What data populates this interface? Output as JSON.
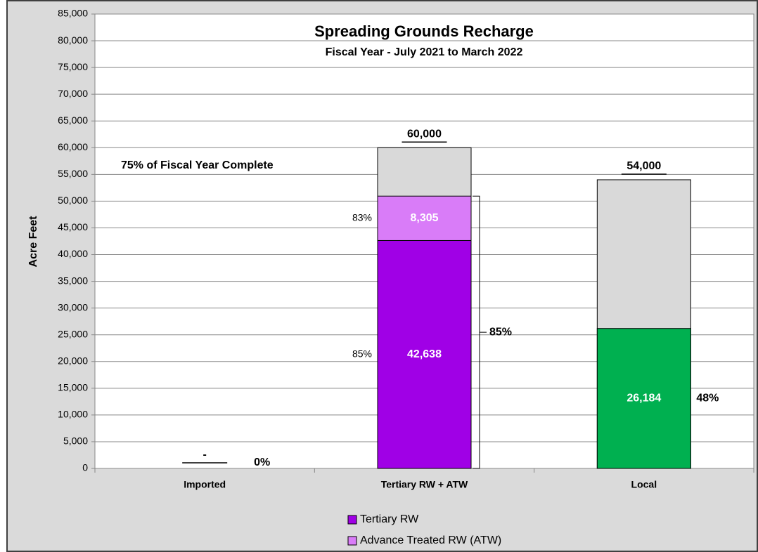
{
  "chart_data": {
    "type": "stacked_bar",
    "title": "Spreading Grounds Recharge",
    "subtitle": "Fiscal Year - July 2021 to March 2022",
    "y_label": "Acre Feet",
    "annotation": "75% of Fiscal Year Complete",
    "categories": [
      "Imported",
      "Tertiary RW + ATW",
      "Local"
    ],
    "targets": {
      "color": "#d9d9d9",
      "values": [
        0,
        60000,
        54000
      ],
      "value_labels": [
        "-",
        "60,000",
        "54,000"
      ]
    },
    "series": [
      {
        "name": "Tertiary RW",
        "color": "#a000e6",
        "values": [
          null,
          42638,
          null
        ],
        "value_labels": [
          null,
          "42,638",
          null
        ],
        "percent_labels": [
          null,
          "85%",
          null
        ]
      },
      {
        "name": "Advance Treated RW (ATW)",
        "color": "#d97cf8",
        "values": [
          null,
          8305,
          null
        ],
        "value_labels": [
          null,
          "8,305",
          null
        ],
        "percent_labels": [
          null,
          "83%",
          null
        ]
      },
      {
        "color": "#00b050",
        "values": [
          null,
          null,
          26184
        ],
        "value_labels": [
          null,
          null,
          "26,184"
        ]
      }
    ],
    "total_percent_labels": [
      "0%",
      "85%",
      "48%"
    ],
    "ylim": [
      0,
      85000
    ],
    "yticks": [
      0,
      {
        "value": 5000,
        "label": "5,000"
      },
      {
        "value": 10000,
        "label": "10,000"
      },
      {
        "value": 15000,
        "label": "15,000"
      },
      {
        "value": 20000,
        "label": "20,000"
      },
      {
        "value": 25000,
        "label": "25,000"
      },
      {
        "value": 30000,
        "label": "30,000"
      },
      {
        "value": 35000,
        "label": "35,000"
      },
      {
        "value": 40000,
        "label": "40,000"
      },
      {
        "value": 45000,
        "label": "45,000"
      },
      {
        "value": 50000,
        "label": "50,000"
      },
      {
        "value": 55000,
        "label": "55,000"
      },
      {
        "value": 60000,
        "label": "60,000"
      },
      {
        "value": 65000,
        "label": "65,000"
      },
      {
        "value": 70000,
        "label": "70,000"
      },
      {
        "value": 75000,
        "label": "75,000"
      },
      {
        "value": 80000,
        "label": "80,000"
      },
      {
        "value": 85000,
        "label": "85,000"
      }
    ],
    "grid": true
  }
}
